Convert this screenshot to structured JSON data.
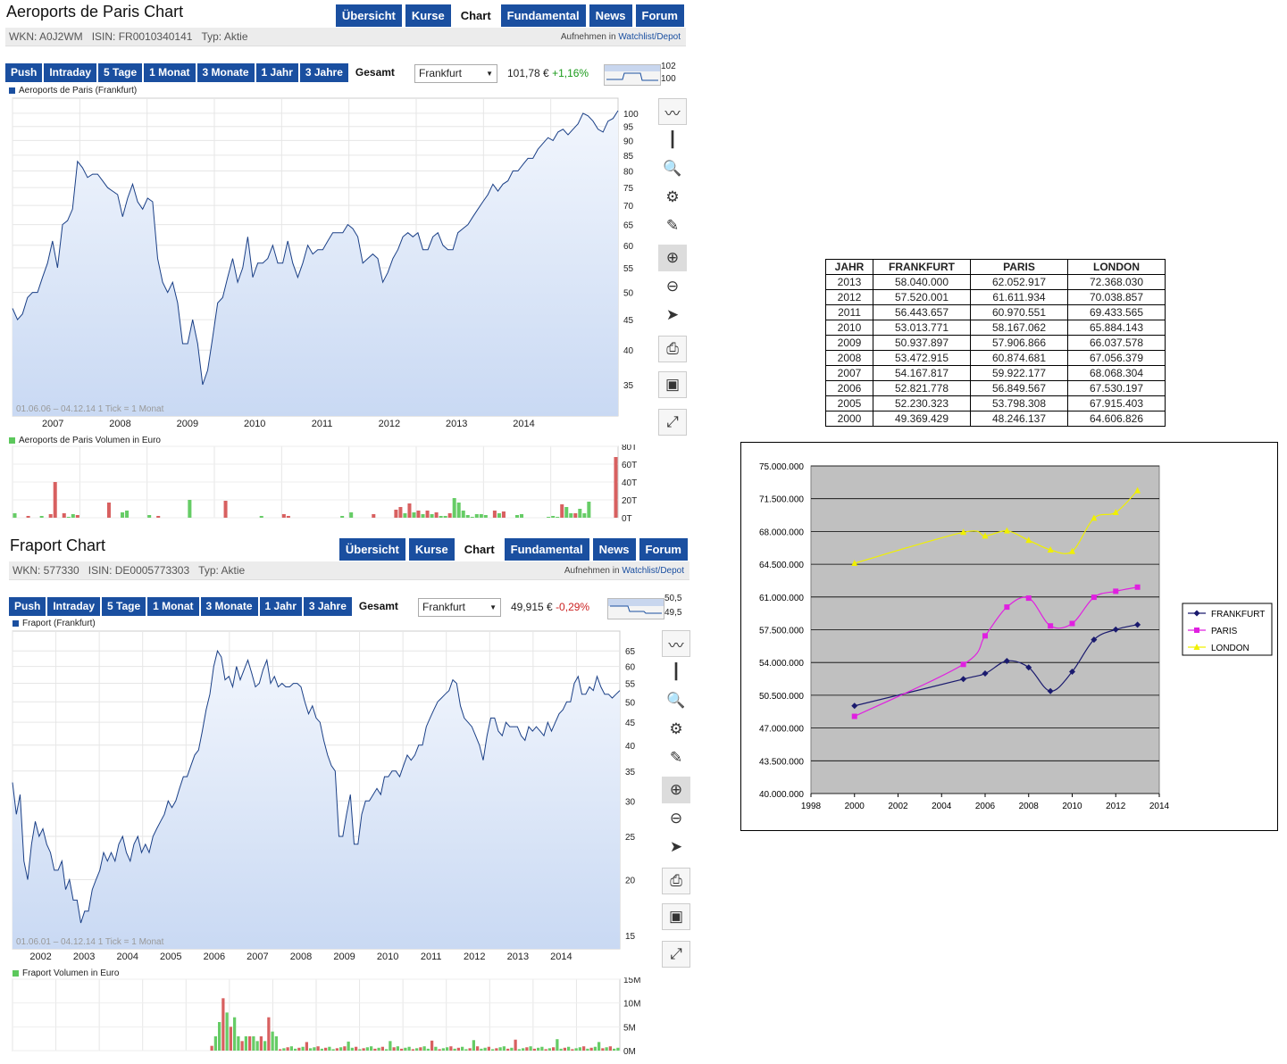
{
  "panels": [
    {
      "title": "Aeroports de Paris Chart",
      "tabs": [
        "Übersicht",
        "Kurse",
        "Chart",
        "Fundamental",
        "News",
        "Forum"
      ],
      "active_tab": "Chart",
      "wkn": "WKN: A0J2WM",
      "isin": "ISIN: FR0010340141",
      "typ": "Typ: Aktie",
      "watch_prefix": "Aufnehmen in",
      "watch_link": "Watchlist/Depot",
      "ranges": [
        "Push",
        "Intraday",
        "5 Tage",
        "1 Monat",
        "3 Monate",
        "1 Jahr",
        "3 Jahre",
        "Gesamt"
      ],
      "active_range": "Gesamt",
      "exchange": "Frankfurt",
      "price": "101,78 €",
      "change": "+1,16%",
      "change_dir": "pos",
      "spark_hi": "102",
      "spark_lo": "100",
      "price_legend": "Aeroports de Paris (Frankfurt)",
      "period_note": "01.06.06 – 04.12.14   1 Tick = 1 Monat",
      "volume_legend": "Aeroports de Paris Volumen in Euro",
      "y_ticks": [
        35,
        40,
        45,
        50,
        55,
        60,
        65,
        70,
        75,
        80,
        85,
        90,
        95,
        100
      ],
      "x_years": [
        "2007",
        "2008",
        "2009",
        "2010",
        "2011",
        "2012",
        "2013",
        "2014"
      ],
      "vol_ticks": [
        "80T",
        "60T",
        "40T",
        "20T",
        "0T"
      ],
      "price_series": [
        47,
        45,
        46,
        49,
        50,
        50,
        53,
        56,
        61,
        55,
        65,
        66,
        69,
        83,
        81,
        78,
        79,
        79,
        77,
        75,
        74,
        73,
        67,
        72,
        76,
        71,
        69,
        72,
        71,
        57,
        52,
        50,
        52,
        48,
        41,
        41,
        45,
        41,
        35,
        37,
        42,
        48,
        49,
        53,
        57,
        52,
        55,
        62,
        53,
        56,
        56,
        57,
        60,
        56,
        56,
        61,
        56,
        53,
        56,
        60,
        58,
        59,
        59,
        61,
        63,
        63,
        63,
        65,
        64,
        62,
        56,
        57,
        58,
        57,
        52,
        54,
        57,
        59,
        62,
        63,
        62,
        63,
        59,
        59,
        62,
        63,
        60,
        59,
        59,
        63,
        64,
        65,
        67,
        69,
        71,
        73,
        76,
        74,
        76,
        77,
        80,
        80,
        82,
        84,
        84,
        87,
        89,
        91,
        90,
        93,
        94,
        92,
        94,
        96,
        100,
        99,
        97,
        94,
        93,
        97,
        98,
        101
      ],
      "volume_series": [
        5,
        0,
        0,
        2,
        0,
        0,
        2,
        0,
        4,
        40,
        0,
        5,
        1,
        4,
        3,
        0,
        0,
        0,
        0,
        0,
        0,
        17,
        0,
        0,
        6,
        8,
        0,
        0,
        0,
        0,
        3,
        0,
        2,
        0,
        0,
        0,
        0,
        0,
        0,
        20,
        0,
        0,
        0,
        0,
        0,
        0,
        0,
        19,
        0,
        0,
        0,
        0,
        0,
        0,
        0,
        2,
        0,
        0,
        0,
        0,
        4,
        2,
        0,
        0,
        0,
        0,
        0,
        0,
        0,
        0,
        0,
        0,
        0,
        2,
        0,
        6,
        0,
        0,
        0,
        0,
        4,
        0,
        0,
        0,
        0,
        9,
        12,
        5,
        16,
        6,
        8,
        4,
        8,
        4,
        6,
        2,
        2,
        5,
        22,
        17,
        8,
        3,
        1,
        4,
        4,
        3,
        0,
        8,
        5,
        7,
        0,
        0,
        3,
        4,
        0,
        0,
        0,
        0,
        0,
        1,
        2,
        1,
        15,
        12,
        5,
        5,
        10,
        5,
        18,
        0,
        0,
        0,
        0,
        0,
        68
      ],
      "volume_colors": [
        "g",
        "g",
        "g",
        "r",
        "g",
        "g",
        "g",
        "r",
        "r",
        "r",
        "g",
        "r",
        "g",
        "g",
        "r",
        "g",
        "g",
        "g",
        "g",
        "g",
        "g",
        "r",
        "g",
        "g",
        "g",
        "g",
        "g",
        "g",
        "g",
        "g",
        "g",
        "g",
        "r",
        "g",
        "g",
        "g",
        "g",
        "g",
        "g",
        "g",
        "g",
        "g",
        "g",
        "g",
        "g",
        "g",
        "g",
        "r",
        "g",
        "g",
        "g",
        "g",
        "g",
        "g",
        "g",
        "g",
        "g",
        "g",
        "g",
        "g",
        "r",
        "r",
        "g",
        "g",
        "g",
        "g",
        "g",
        "g",
        "g",
        "g",
        "g",
        "g",
        "g",
        "g",
        "g",
        "g",
        "g",
        "g",
        "g",
        "g",
        "r",
        "g",
        "g",
        "g",
        "g",
        "r",
        "r",
        "g",
        "r",
        "g",
        "r",
        "g",
        "r",
        "g",
        "r",
        "g",
        "g",
        "r",
        "g",
        "g",
        "g",
        "g",
        "g",
        "g",
        "g",
        "g",
        "g",
        "r",
        "g",
        "r",
        "g",
        "g",
        "g",
        "g",
        "g",
        "g",
        "g",
        "g",
        "g",
        "g",
        "g",
        "g",
        "r",
        "g",
        "g",
        "r",
        "g",
        "g",
        "g",
        "g",
        "g",
        "g",
        "g",
        "g",
        "r"
      ]
    },
    {
      "title": "Fraport Chart",
      "tabs": [
        "Übersicht",
        "Kurse",
        "Chart",
        "Fundamental",
        "News",
        "Forum"
      ],
      "active_tab": "Chart",
      "wkn": "WKN: 577330",
      "isin": "ISIN: DE0005773303",
      "typ": "Typ: Aktie",
      "watch_prefix": "Aufnehmen in",
      "watch_link": "Watchlist/Depot",
      "ranges": [
        "Push",
        "Intraday",
        "5 Tage",
        "1 Monat",
        "3 Monate",
        "1 Jahr",
        "3 Jahre",
        "Gesamt"
      ],
      "active_range": "Gesamt",
      "exchange": "Frankfurt",
      "price": "49,915 €",
      "change": "-0,29%",
      "change_dir": "neg",
      "spark_hi": "50,5",
      "spark_lo": "49,5",
      "price_legend": "Fraport (Frankfurt)",
      "period_note": "01.06.01 – 04.12.14   1 Tick = 1 Monat",
      "volume_legend": "Fraport Volumen in Euro",
      "y_ticks": [
        15,
        20,
        25,
        30,
        35,
        40,
        45,
        50,
        55,
        60,
        65
      ],
      "x_years": [
        "2002",
        "2003",
        "2004",
        "2005",
        "2006",
        "2007",
        "2008",
        "2009",
        "2010",
        "2011",
        "2012",
        "2013",
        "2014"
      ],
      "vol_ticks": [
        "15M",
        "10M",
        "5M",
        "0M"
      ],
      "price_series": [
        33,
        28,
        31,
        22,
        20,
        24,
        27,
        25,
        26,
        24,
        23,
        21,
        21,
        22,
        19,
        20,
        18,
        18,
        16,
        17,
        17,
        19,
        20,
        21,
        23,
        22,
        23,
        22,
        24,
        25,
        23,
        22,
        24,
        25,
        23,
        24,
        23,
        25,
        26,
        27,
        28,
        30,
        29,
        30,
        32,
        34,
        34,
        36,
        38,
        39,
        43,
        48,
        52,
        60,
        65,
        63,
        56,
        57,
        54,
        60,
        56,
        59,
        62,
        58,
        54,
        55,
        59,
        62,
        55,
        57,
        54,
        55,
        54,
        54,
        55,
        55,
        54,
        50,
        47,
        49,
        46,
        45,
        41,
        38,
        36,
        35,
        25,
        25,
        28,
        31,
        24,
        24,
        28,
        30,
        30,
        31,
        32,
        31,
        34,
        34,
        35,
        35,
        34,
        36,
        38,
        37,
        38,
        40,
        40,
        44,
        46,
        48,
        50,
        51,
        52,
        53,
        56,
        55,
        49,
        46,
        45,
        44,
        42,
        40,
        37,
        42,
        46,
        46,
        43,
        42,
        45,
        44,
        44,
        44,
        42,
        41,
        44,
        43,
        44,
        43,
        42,
        45,
        43,
        45,
        47,
        48,
        50,
        50,
        55,
        57,
        52,
        52,
        54,
        53,
        57,
        54,
        52,
        52,
        51,
        52,
        53
      ],
      "volume_series": [
        0,
        0,
        0,
        0,
        0,
        0,
        0,
        0,
        0,
        0,
        0,
        0,
        0,
        0,
        0,
        0,
        0,
        0,
        0,
        0,
        0,
        0,
        0,
        0,
        0,
        0,
        0,
        0,
        0,
        0,
        0,
        0,
        0,
        0,
        0,
        0,
        0,
        0,
        0,
        0,
        0,
        0,
        0,
        0,
        0,
        0,
        0,
        0,
        0,
        0,
        0,
        0,
        0,
        0,
        0,
        0,
        0,
        0,
        0,
        0,
        0,
        0,
        0,
        0,
        0,
        0,
        0,
        0,
        0,
        0,
        0,
        0,
        0,
        0,
        0,
        0,
        0,
        0,
        0,
        0,
        0,
        0,
        0,
        0,
        0,
        0,
        0,
        0,
        0,
        0,
        0,
        0,
        0,
        0,
        0,
        0,
        0,
        0,
        0,
        0,
        0,
        0,
        0,
        0,
        0,
        0,
        0,
        0,
        0,
        0,
        0,
        0,
        0,
        0,
        0,
        0,
        0,
        0,
        0,
        0,
        0,
        0,
        0,
        0,
        0,
        0,
        0,
        0,
        0,
        0,
        0,
        0,
        0,
        0,
        0,
        0,
        0,
        0,
        0,
        0,
        0,
        0,
        0,
        0,
        0,
        0,
        0,
        0,
        0,
        0,
        0,
        0,
        0,
        0,
        0,
        0,
        0,
        0,
        0,
        0,
        0
      ],
      "volume_note": "volume series rendered in script"
    }
  ],
  "tools": [
    "line-chart-icon",
    "bar-chart-icon",
    "magnify-select-icon",
    "gears-icon",
    "ruler-icon",
    "zoom-in-icon",
    "zoom-out-icon",
    "pointer-icon",
    "print-icon",
    "save-icon",
    "expand-icon"
  ],
  "table": {
    "headers": [
      "JAHR",
      "FRANKFURT",
      "PARIS",
      "LONDON"
    ],
    "rows": [
      [
        "2013",
        "58.040.000",
        "62.052.917",
        "72.368.030"
      ],
      [
        "2012",
        "57.520.001",
        "61.611.934",
        "70.038.857"
      ],
      [
        "2011",
        "56.443.657",
        "60.970.551",
        "69.433.565"
      ],
      [
        "2010",
        "53.013.771",
        "58.167.062",
        "65.884.143"
      ],
      [
        "2009",
        "50.937.897",
        "57.906.866",
        "66.037.578"
      ],
      [
        "2008",
        "53.472.915",
        "60.874.681",
        "67.056.379"
      ],
      [
        "2007",
        "54.167.817",
        "59.922.177",
        "68.068.304"
      ],
      [
        "2006",
        "52.821.778",
        "56.849.567",
        "67.530.197"
      ],
      [
        "2005",
        "52.230.323",
        "53.798.308",
        "67.915.403"
      ],
      [
        "2000",
        "49.369.429",
        "48.246.137",
        "64.606.826"
      ]
    ]
  },
  "chart_data": {
    "type": "line",
    "x": [
      2000,
      2005,
      2006,
      2007,
      2008,
      2009,
      2010,
      2011,
      2012,
      2013
    ],
    "series": [
      {
        "name": "FRANKFURT",
        "color": "#1a1a6e",
        "values": [
          49369429,
          52230323,
          52821778,
          54167817,
          53472915,
          50937897,
          53013771,
          56443657,
          57520001,
          58040000
        ]
      },
      {
        "name": "PARIS",
        "color": "#e020e0",
        "values": [
          48246137,
          53798308,
          56849567,
          59922177,
          60874681,
          57906866,
          58167062,
          60970551,
          61611934,
          62052917
        ]
      },
      {
        "name": "LONDON",
        "color": "#f0f000",
        "values": [
          64606826,
          67915403,
          67530197,
          68068304,
          67056379,
          66037578,
          65884143,
          69433565,
          70038857,
          72368030
        ]
      }
    ],
    "xlim": [
      1998,
      2014
    ],
    "ylim": [
      40000000,
      75000000
    ],
    "x_ticks": [
      "1998",
      "2000",
      "2002",
      "2004",
      "2006",
      "2008",
      "2010",
      "2012",
      "2014"
    ],
    "y_ticks": [
      "40.000.000",
      "43.500.000",
      "47.000.000",
      "50.500.000",
      "54.000.000",
      "57.500.000",
      "61.000.000",
      "64.500.000",
      "68.000.000",
      "71.500.000",
      "75.000.000"
    ],
    "grid": true,
    "legend": "right"
  }
}
